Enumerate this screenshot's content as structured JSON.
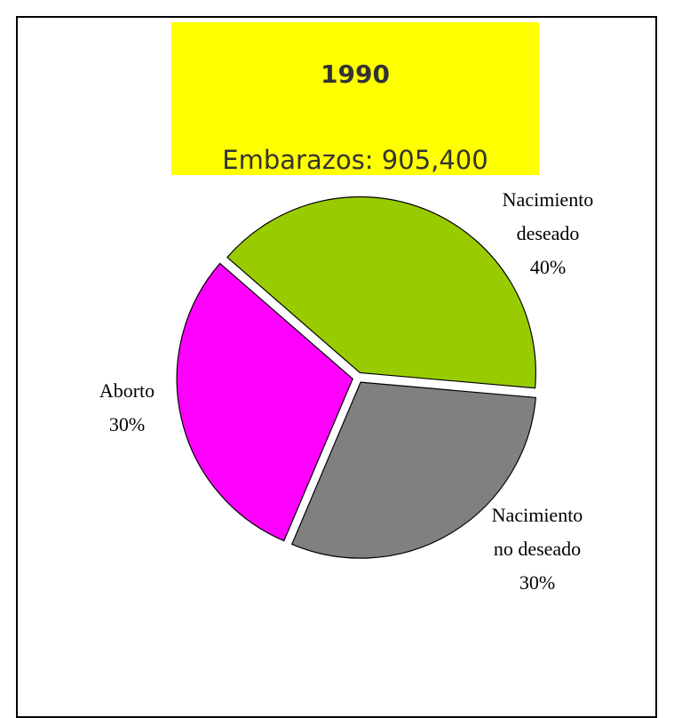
{
  "chart_data": {
    "type": "pie",
    "title": "1990",
    "subtitle": "Embarazos: 905,400",
    "categories": [
      "Nacimiento deseado",
      "Nacimiento no deseado",
      "Aborto"
    ],
    "values": [
      40,
      30,
      30
    ],
    "value_labels": [
      "40%",
      "30%",
      "30%"
    ],
    "colors": [
      "#99cc00",
      "#808080",
      "#ff00ff"
    ]
  }
}
